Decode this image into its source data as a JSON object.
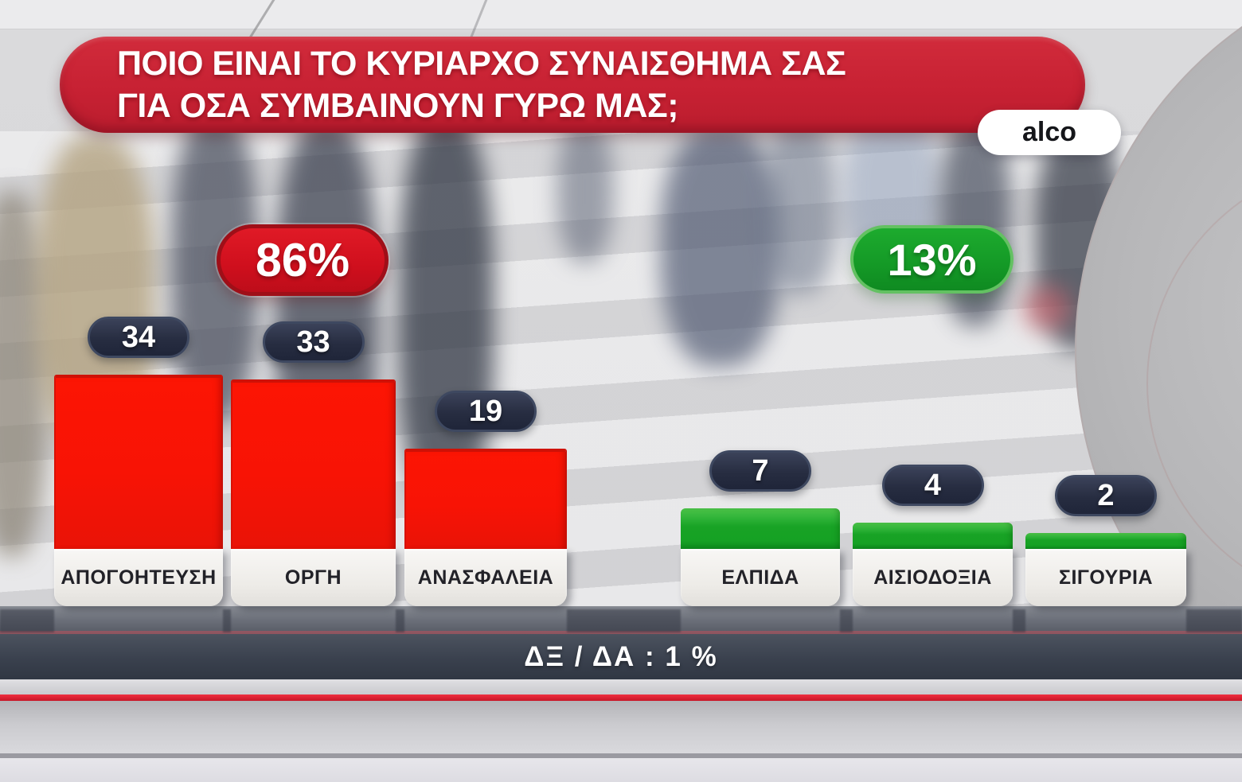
{
  "title": {
    "line1": "ΠΟΙΟ ΕΙΝΑΙ ΤΟ ΚΥΡΙΑΡΧΟ ΣΥΝΑΙΣΘΗΜΑ ΣΑΣ",
    "line2": "ΓΙΑ ΟΣΑ ΣΥΜΒΑΙΝΟΥΝ ΓΥΡΩ ΜΑΣ;"
  },
  "source_badge": {
    "label": "alco"
  },
  "group_totals": {
    "negative": {
      "label": "86%",
      "color": "#cf0f1d"
    },
    "positive": {
      "label": "13%",
      "color": "#149926"
    }
  },
  "footer": {
    "dk_na_label": "ΔΞ / ΔΑ : 1 %"
  },
  "colors": {
    "banner_red": "#c72133",
    "bar_red": "#f81305",
    "bar_green": "#18a325",
    "value_pill_navy": "#272d41",
    "label_box": "#edebe7",
    "platform_slate": "#3a414e"
  },
  "chart_data": {
    "type": "bar",
    "title": "ΠΟΙΟ ΕΙΝΑΙ ΤΟ ΚΥΡΙΑΡΧΟ ΣΥΝΑΙΣΘΗΜΑ ΣΑΣ ΓΙΑ ΟΣΑ ΣΥΜΒΑΙΝΟΥΝ ΓΥΡΩ ΜΑΣ;",
    "categories": [
      "ΑΠΟΓΟΗΤΕΥΣΗ",
      "ΟΡΓΗ",
      "ΑΝΑΣΦΑΛΕΙΑ",
      "ΕΛΠΙΔΑ",
      "ΑΙΣΙΟΔΟΞΙΑ",
      "ΣΙΓΟΥΡΙΑ"
    ],
    "values": [
      34,
      33,
      19,
      7,
      4,
      2
    ],
    "bar_groups": [
      "negative",
      "negative",
      "negative",
      "positive",
      "positive",
      "positive"
    ],
    "group_totals": [
      {
        "group": "negative",
        "label": "86%",
        "categories": [
          "ΑΠΟΓΟΗΤΕΥΣΗ",
          "ΟΡΓΗ",
          "ΑΝΑΣΦΑΛΕΙΑ"
        ]
      },
      {
        "group": "positive",
        "label": "13%",
        "categories": [
          "ΕΛΠΙΔΑ",
          "ΑΙΣΙΟΔΟΞΙΑ",
          "ΣΙΓΟΥΡΙΑ"
        ]
      }
    ],
    "footnote": "ΔΞ / ΔΑ : 1 %",
    "value_unit": "%",
    "ylim": [
      0,
      40
    ],
    "grid": false,
    "legend_position": "none"
  }
}
